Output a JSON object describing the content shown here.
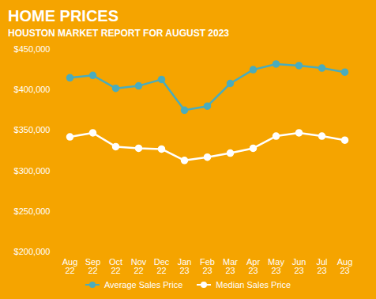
{
  "chart_data": {
    "type": "line",
    "title": "HOME PRICES",
    "subtitle": "HOUSTON MARKET REPORT FOR AUGUST 2023",
    "categories": [
      "Aug\n22",
      "Sep\n22",
      "Oct\n22",
      "Nov\n22",
      "Dec\n22",
      "Jan\n23",
      "Feb\n23",
      "Mar\n23",
      "Apr\n23",
      "May\n23",
      "Jun\n23",
      "Jul\n23",
      "Aug\n23"
    ],
    "series": [
      {
        "name": "Average Sales Price",
        "color": "#4AACBD",
        "marker": "circle",
        "line_style": "solid",
        "values": [
          415000,
          418000,
          402000,
          405000,
          413000,
          375000,
          380000,
          408000,
          425000,
          432000,
          430000,
          427000,
          422000
        ]
      },
      {
        "name": "Median Sales Price",
        "color": "#FFFFFF",
        "marker": "circle",
        "line_style": "solid",
        "values": [
          342000,
          347000,
          330000,
          328000,
          327000,
          313000,
          317000,
          322000,
          328000,
          343000,
          347000,
          343000,
          338000
        ]
      }
    ],
    "ylim": [
      200000,
      450000
    ],
    "yticks": [
      {
        "value": 200000,
        "label": "$200,000"
      },
      {
        "value": 250000,
        "label": "$250,000"
      },
      {
        "value": 300000,
        "label": "$300,000"
      },
      {
        "value": 350000,
        "label": "$350,000"
      },
      {
        "value": 400000,
        "label": "$400,000"
      },
      {
        "value": 450000,
        "label": "$450,000"
      }
    ],
    "grid": false,
    "legend": "bottom"
  }
}
